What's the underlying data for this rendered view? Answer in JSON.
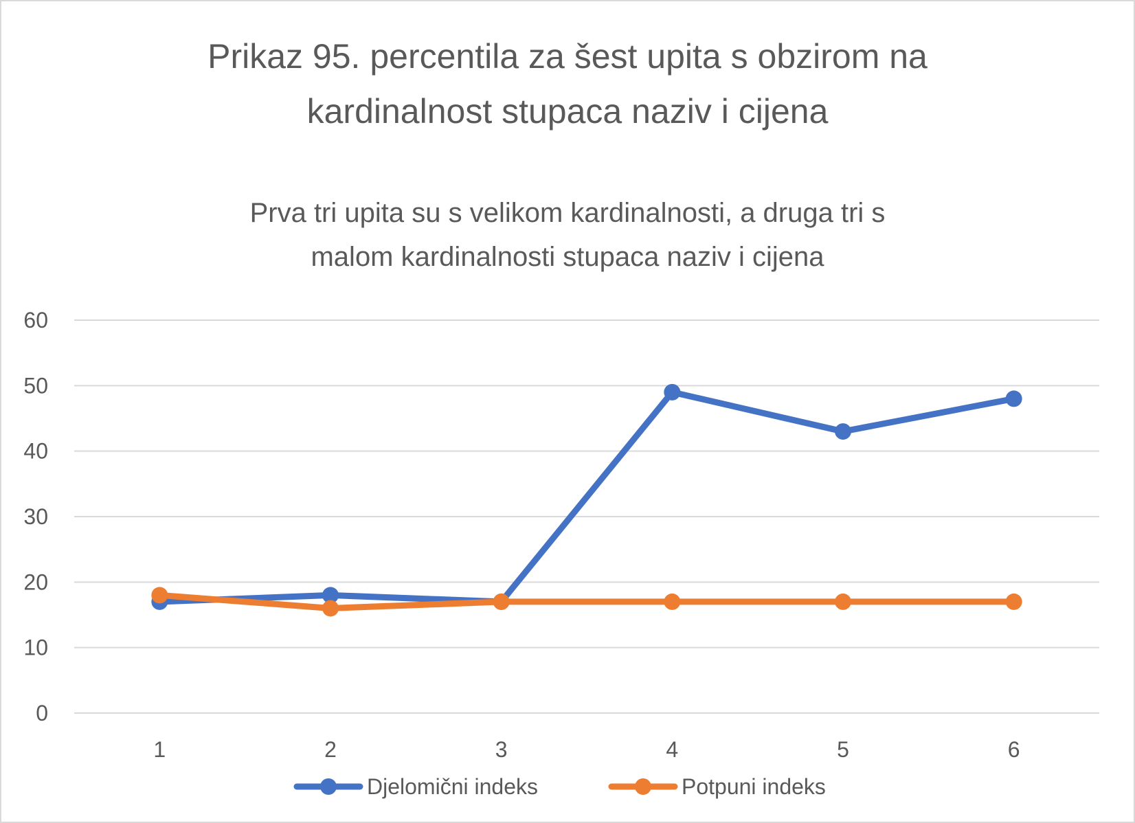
{
  "chart_data": {
    "type": "line",
    "title_lines": [
      "Prikaz 95. percentila za šest upita s obzirom na",
      "kardinalnost stupaca naziv i cijena"
    ],
    "subtitle_lines": [
      "Prva tri upita su s velikom kardinalnosti, a druga tri s",
      "malom kardinalnosti stupaca naziv i cijena"
    ],
    "categories": [
      "1",
      "2",
      "3",
      "4",
      "5",
      "6"
    ],
    "series": [
      {
        "name": "Djelomični indeks",
        "color": "#4472c4",
        "values": [
          17,
          18,
          17,
          49,
          43,
          48
        ]
      },
      {
        "name": "Potpuni indeks",
        "color": "#ed7d31",
        "values": [
          18,
          16,
          17,
          17,
          17,
          17
        ]
      }
    ],
    "ylim": [
      0,
      60
    ],
    "yticks": [
      "0",
      "10",
      "20",
      "30",
      "40",
      "50",
      "60"
    ],
    "grid": true,
    "gridline_color": "#d9d9d9",
    "legend_position": "bottom"
  }
}
